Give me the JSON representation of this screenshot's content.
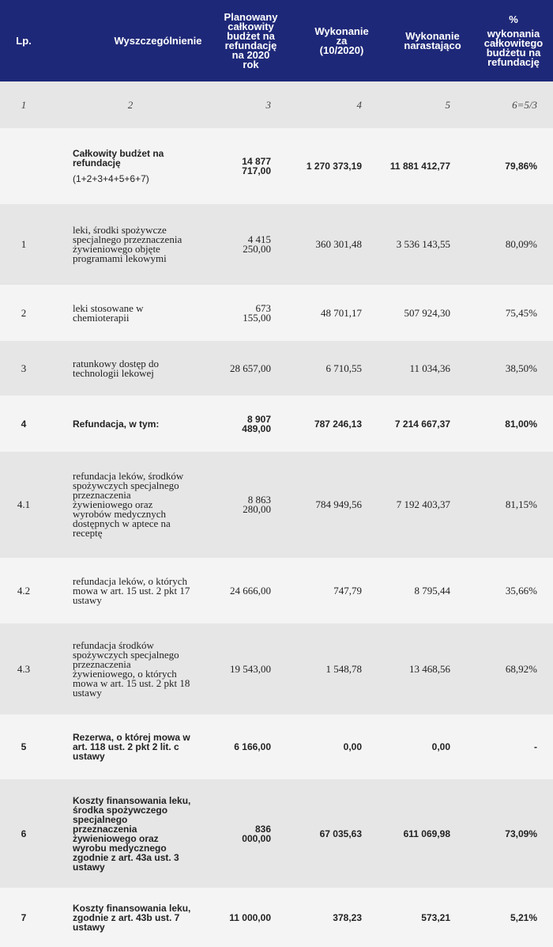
{
  "header": {
    "lp": "Lp.",
    "desc": "Wyszczególnienie",
    "planned": "Planowany całkowity budżet na refundację na 2020 rok",
    "executed": "Wykonanie za (10/2020)",
    "cumulative": "Wykonanie narastająco",
    "percent_sign": "%",
    "percent": "wykonania całkowitego budżetu na refundację"
  },
  "numbering": [
    "1",
    "2",
    "3",
    "4",
    "5",
    "6=5/3"
  ],
  "rows": [
    {
      "desc": "Całkowity budżet na refundację",
      "formula": "(1+2+3+4+5+6+7)",
      "planned": "14 877 717,00",
      "executed": "1 270 373,19",
      "cumulative": "11 881 412,77",
      "percent": "79,86%",
      "bold": true
    },
    {
      "lp": "1",
      "desc": "leki, środki spożywcze specjalnego przeznaczenia żywieniowego objęte programami lekowymi",
      "planned": "4 415 250,00",
      "executed": "360 301,48",
      "cumulative": "3 536 143,55",
      "percent": "80,09%",
      "bold": false
    },
    {
      "lp": "2",
      "desc": "leki stosowane w chemioterapii",
      "planned": "673 155,00",
      "executed": "48 701,17",
      "cumulative": "507 924,30",
      "percent": "75,45%",
      "bold": false
    },
    {
      "lp": "3",
      "desc": "ratunkowy dostęp do technologii lekowej",
      "planned": "28 657,00",
      "executed": "6 710,55",
      "cumulative": "11 034,36",
      "percent": "38,50%",
      "bold": false
    },
    {
      "lp": "4",
      "desc": "Refundacja, w tym:",
      "planned": "8 907 489,00",
      "executed": "787 246,13",
      "cumulative": "7 214 667,37",
      "percent": "81,00%",
      "bold": true
    },
    {
      "lp": "4.1",
      "desc": "refundacja leków, środków spożywczych specjalnego przeznaczenia żywieniowego oraz wyrobów medycznych dostępnych w aptece na receptę",
      "planned": "8 863 280,00",
      "executed": "784 949,56",
      "cumulative": "7 192 403,37",
      "percent": "81,15%",
      "bold": false
    },
    {
      "lp": "4.2",
      "desc": "refundacja leków, o których mowa w art. 15 ust. 2 pkt 17 ustawy",
      "planned": "24 666,00",
      "executed": "747,79",
      "cumulative": "8 795,44",
      "percent": "35,66%",
      "bold": false
    },
    {
      "lp": "4.3",
      "desc": "refundacja środków spożywczych specjalnego przeznaczenia żywieniowego, o których mowa w art. 15 ust. 2 pkt 18 ustawy",
      "planned": "19 543,00",
      "executed": "1 548,78",
      "cumulative": "13 468,56",
      "percent": "68,92%",
      "bold": false
    },
    {
      "lp": "5",
      "desc": "Rezerwa, o której mowa w art. 118 ust. 2 pkt 2 lit. c ustawy",
      "planned": "6 166,00",
      "executed": "0,00",
      "cumulative": "0,00",
      "percent": "-",
      "bold": true
    },
    {
      "lp": "6",
      "desc": "Koszty finansowania leku, środka spożywczego specjalnego przeznaczenia żywieniowego oraz wyrobu medycznego zgodnie z art. 43a ust. 3 ustawy",
      "planned": "836 000,00",
      "executed": "67 035,63",
      "cumulative": "611 069,98",
      "percent": "73,09%",
      "bold": true
    },
    {
      "lp": "7",
      "desc": "Koszty finansowania leku, zgodnie z art. 43b ust. 7 ustawy",
      "planned": "11 000,00",
      "executed": "378,23",
      "cumulative": "573,21",
      "percent": "5,21%",
      "bold": true
    }
  ]
}
